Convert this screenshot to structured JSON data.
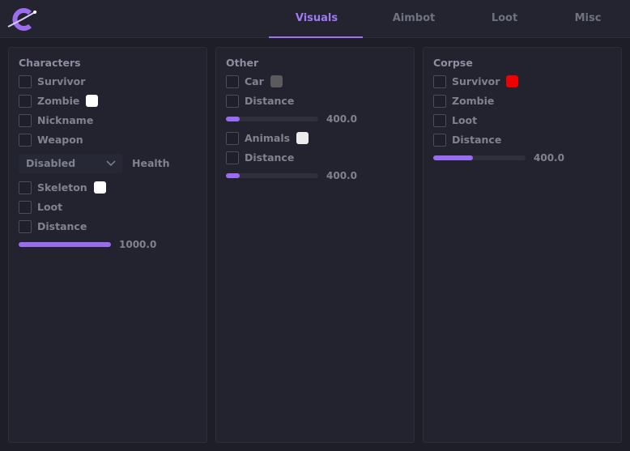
{
  "tabs": [
    "Visuals",
    "Aimbot",
    "Loot",
    "Misc"
  ],
  "panels": [
    {
      "title": "Characters",
      "items": [
        {
          "type": "checkbox",
          "label": "Survivor"
        },
        {
          "type": "checkbox",
          "label": "Zombie",
          "color": "#ffffff"
        },
        {
          "type": "checkbox",
          "label": "Nickname"
        },
        {
          "type": "checkbox",
          "label": "Weapon"
        },
        {
          "type": "dropdown",
          "value": "Disabled",
          "label": "Health"
        },
        {
          "type": "checkbox",
          "label": "Skeleton",
          "color": "#ffffff"
        },
        {
          "type": "checkbox",
          "label": "Loot"
        },
        {
          "type": "checkbox",
          "label": "Distance"
        },
        {
          "type": "slider",
          "value": "1000.0"
        }
      ]
    },
    {
      "title": "Other",
      "items": [
        {
          "type": "checkbox",
          "label": "Car",
          "color": "#5b5b5e"
        },
        {
          "type": "checkbox",
          "label": "Distance"
        },
        {
          "type": "slider",
          "value": "400.0"
        },
        {
          "type": "checkbox",
          "label": "Animals",
          "color": "#ececec"
        },
        {
          "type": "checkbox",
          "label": "Distance"
        },
        {
          "type": "slider",
          "value": "400.0"
        }
      ]
    },
    {
      "title": "Corpse",
      "items": [
        {
          "type": "checkbox",
          "label": "Survivor",
          "color": "#ee0000"
        },
        {
          "type": "checkbox",
          "label": "Zombie"
        },
        {
          "type": "checkbox",
          "label": "Loot"
        },
        {
          "type": "checkbox",
          "label": "Distance"
        },
        {
          "type": "slider",
          "value": "400.0"
        }
      ]
    }
  ]
}
